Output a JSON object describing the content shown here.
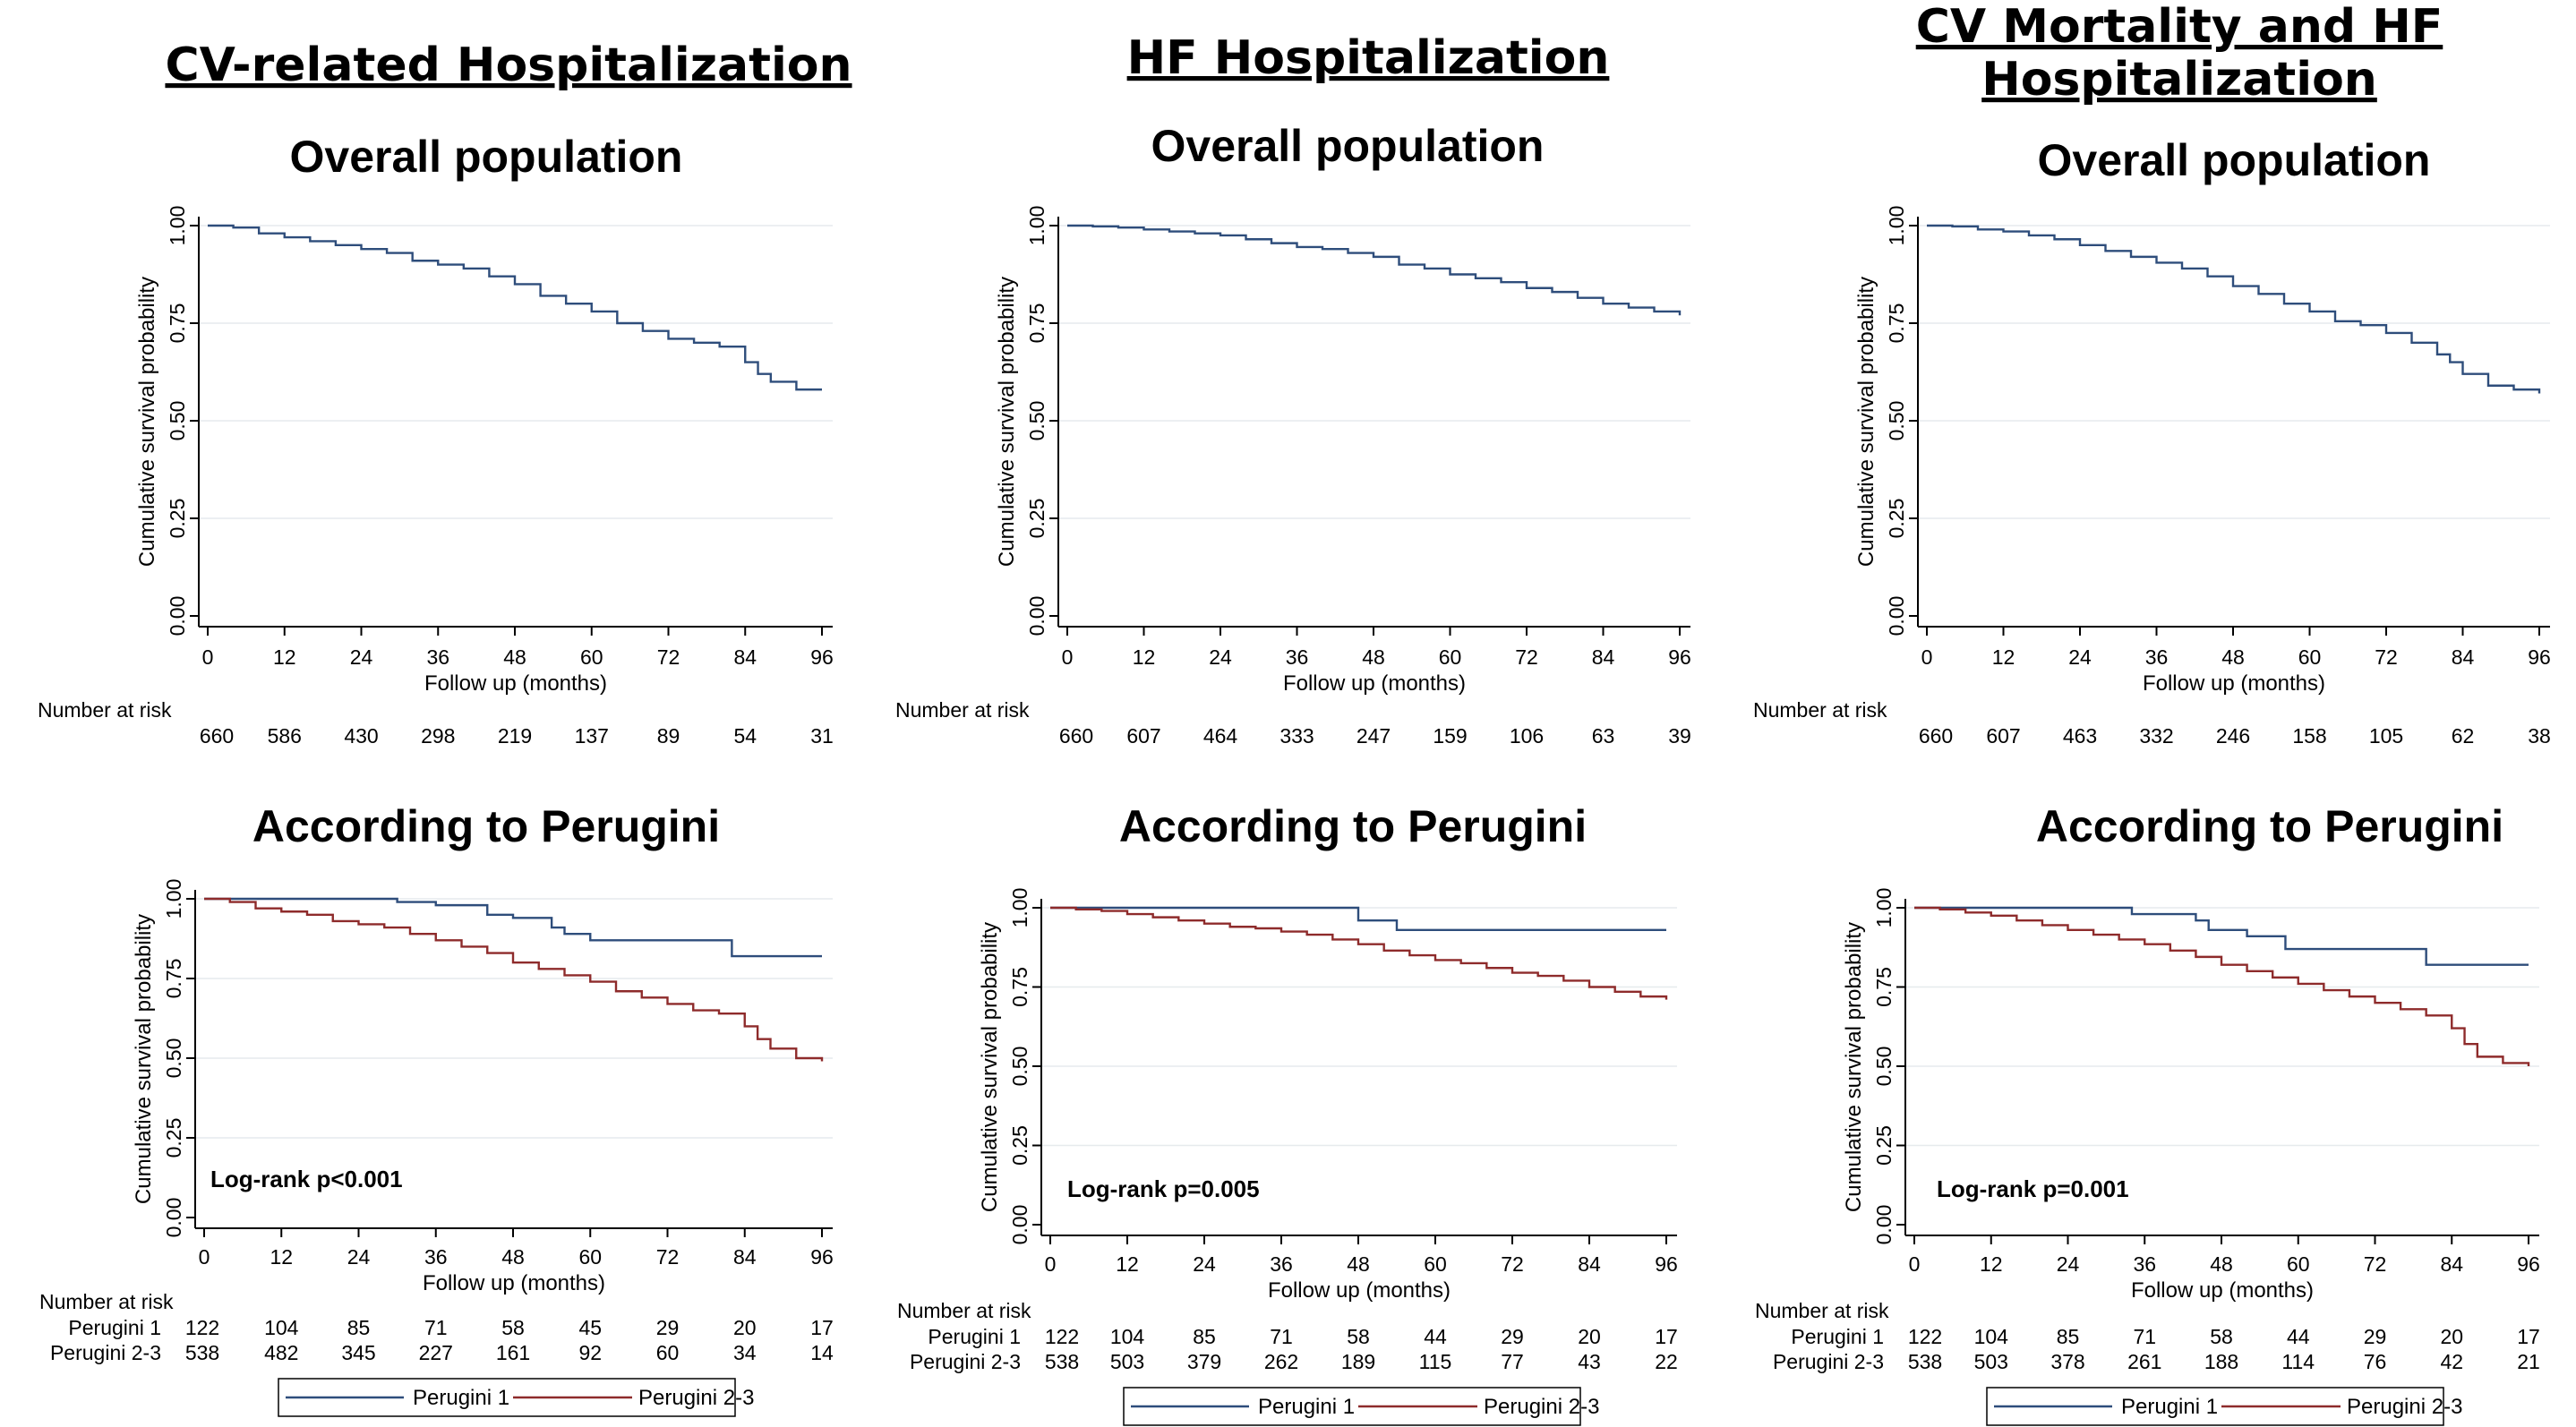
{
  "colors": {
    "series1": "#2e4d7b",
    "series2": "#8e2b2b",
    "grid": "#e6eaed",
    "axis": "#000000"
  },
  "x_ticks": [
    "0",
    "12",
    "24",
    "36",
    "48",
    "60",
    "72",
    "84",
    "96"
  ],
  "y_ticks": [
    "0.00",
    "0.25",
    "0.50",
    "0.75",
    "1.00"
  ],
  "labels": {
    "ylabel": "Cumulative survival probability",
    "xlabel": "Follow up (months)",
    "risk_header": "Number at risk",
    "group1": "Perugini 1",
    "group2": "Perugini 2-3",
    "legend1": "Perugini 1",
    "legend2": "Perugini 2-3"
  },
  "columns": [
    {
      "title_lines": [
        "CV-related Hospitalization"
      ],
      "top": {
        "subtitle": "Overall population",
        "risk": [
          "660",
          "586",
          "430",
          "298",
          "219",
          "137",
          "89",
          "54",
          "31"
        ],
        "chart_data": {
          "type": "line",
          "xlim": [
            0,
            96
          ],
          "ylim": [
            0,
            1
          ],
          "series": [
            {
              "name": "Overall",
              "x": [
                0,
                4,
                8,
                12,
                16,
                20,
                24,
                28,
                32,
                36,
                40,
                44,
                48,
                52,
                56,
                60,
                64,
                68,
                72,
                76,
                80,
                84,
                86,
                88,
                92,
                96
              ],
              "y": [
                1.0,
                0.995,
                0.98,
                0.97,
                0.96,
                0.95,
                0.94,
                0.93,
                0.91,
                0.9,
                0.89,
                0.87,
                0.85,
                0.82,
                0.8,
                0.78,
                0.75,
                0.73,
                0.71,
                0.7,
                0.69,
                0.65,
                0.62,
                0.6,
                0.58,
                0.58
              ]
            }
          ]
        }
      },
      "bottom": {
        "subtitle": "According to Perugini",
        "logrank": "Log-rank p<0.001",
        "risk1": [
          "122",
          "104",
          "85",
          "71",
          "58",
          "45",
          "29",
          "20",
          "17"
        ],
        "risk2": [
          "538",
          "482",
          "345",
          "227",
          "161",
          "92",
          "60",
          "34",
          "14"
        ],
        "chart_data": {
          "type": "line",
          "xlim": [
            0,
            96
          ],
          "ylim": [
            0,
            1
          ],
          "series": [
            {
              "name": "Perugini 1",
              "x": [
                0,
                10,
                30,
                36,
                44,
                48,
                54,
                56,
                60,
                82,
                96
              ],
              "y": [
                1.0,
                1.0,
                0.99,
                0.98,
                0.95,
                0.94,
                0.91,
                0.89,
                0.87,
                0.82,
                0.82
              ]
            },
            {
              "name": "Perugini 2-3",
              "x": [
                0,
                4,
                8,
                12,
                16,
                20,
                24,
                28,
                32,
                36,
                40,
                44,
                48,
                52,
                56,
                60,
                64,
                68,
                72,
                76,
                80,
                84,
                86,
                88,
                92,
                96
              ],
              "y": [
                1.0,
                0.99,
                0.97,
                0.96,
                0.95,
                0.93,
                0.92,
                0.91,
                0.89,
                0.87,
                0.85,
                0.83,
                0.8,
                0.78,
                0.76,
                0.74,
                0.71,
                0.69,
                0.67,
                0.65,
                0.64,
                0.6,
                0.56,
                0.53,
                0.5,
                0.49
              ]
            }
          ]
        }
      }
    },
    {
      "title_lines": [
        "HF Hospitalization"
      ],
      "top": {
        "subtitle": "Overall population",
        "risk": [
          "660",
          "607",
          "464",
          "333",
          "247",
          "159",
          "106",
          "63",
          "39"
        ],
        "chart_data": {
          "type": "line",
          "xlim": [
            0,
            96
          ],
          "ylim": [
            0,
            1
          ],
          "series": [
            {
              "name": "Overall",
              "x": [
                0,
                4,
                8,
                12,
                16,
                20,
                24,
                28,
                32,
                36,
                40,
                44,
                48,
                52,
                56,
                60,
                64,
                68,
                72,
                76,
                80,
                84,
                88,
                92,
                96
              ],
              "y": [
                1.0,
                0.998,
                0.995,
                0.99,
                0.985,
                0.98,
                0.975,
                0.965,
                0.955,
                0.945,
                0.94,
                0.93,
                0.92,
                0.9,
                0.89,
                0.875,
                0.865,
                0.855,
                0.84,
                0.83,
                0.815,
                0.8,
                0.79,
                0.78,
                0.77
              ]
            }
          ]
        }
      },
      "bottom": {
        "subtitle": "According to Perugini",
        "logrank": "Log-rank p=0.005",
        "risk1": [
          "122",
          "104",
          "85",
          "71",
          "58",
          "44",
          "29",
          "20",
          "17"
        ],
        "risk2": [
          "538",
          "503",
          "379",
          "262",
          "189",
          "115",
          "77",
          "43",
          "22"
        ],
        "chart_data": {
          "type": "line",
          "xlim": [
            0,
            96
          ],
          "ylim": [
            0,
            1
          ],
          "series": [
            {
              "name": "Perugini 1",
              "x": [
                0,
                20,
                46,
                48,
                54,
                96
              ],
              "y": [
                1.0,
                1.0,
                1.0,
                0.96,
                0.93,
                0.93
              ]
            },
            {
              "name": "Perugini 2-3",
              "x": [
                0,
                4,
                8,
                12,
                16,
                20,
                24,
                28,
                32,
                36,
                40,
                44,
                48,
                52,
                56,
                60,
                64,
                68,
                72,
                76,
                80,
                84,
                88,
                92,
                96
              ],
              "y": [
                1.0,
                0.995,
                0.99,
                0.98,
                0.97,
                0.96,
                0.95,
                0.94,
                0.935,
                0.925,
                0.915,
                0.9,
                0.885,
                0.865,
                0.85,
                0.835,
                0.825,
                0.81,
                0.795,
                0.785,
                0.77,
                0.75,
                0.735,
                0.72,
                0.71
              ]
            }
          ]
        }
      }
    },
    {
      "title_lines": [
        "CV Mortality and HF",
        "Hospitalization"
      ],
      "top": {
        "subtitle": "Overall population",
        "risk": [
          "660",
          "607",
          "463",
          "332",
          "246",
          "158",
          "105",
          "62",
          "38"
        ],
        "chart_data": {
          "type": "line",
          "xlim": [
            0,
            96
          ],
          "ylim": [
            0,
            1
          ],
          "series": [
            {
              "name": "Overall",
              "x": [
                0,
                4,
                8,
                12,
                16,
                20,
                24,
                28,
                32,
                36,
                40,
                44,
                48,
                52,
                56,
                60,
                64,
                68,
                72,
                76,
                80,
                82,
                84,
                88,
                92,
                96
              ],
              "y": [
                1.0,
                0.998,
                0.99,
                0.985,
                0.975,
                0.965,
                0.95,
                0.935,
                0.92,
                0.905,
                0.89,
                0.87,
                0.845,
                0.825,
                0.8,
                0.78,
                0.755,
                0.745,
                0.725,
                0.7,
                0.67,
                0.65,
                0.62,
                0.59,
                0.58,
                0.57
              ]
            }
          ]
        }
      },
      "bottom": {
        "subtitle": "According to Perugini",
        "logrank": "Log-rank p=0.001",
        "risk1": [
          "122",
          "104",
          "85",
          "71",
          "58",
          "44",
          "29",
          "20",
          "17"
        ],
        "risk2": [
          "538",
          "503",
          "378",
          "261",
          "188",
          "114",
          "76",
          "42",
          "21"
        ],
        "chart_data": {
          "type": "line",
          "xlim": [
            0,
            96
          ],
          "ylim": [
            0,
            1
          ],
          "series": [
            {
              "name": "Perugini 1",
              "x": [
                0,
                20,
                34,
                44,
                46,
                52,
                58,
                80,
                96
              ],
              "y": [
                1.0,
                1.0,
                0.98,
                0.96,
                0.93,
                0.91,
                0.87,
                0.82,
                0.82
              ]
            },
            {
              "name": "Perugini 2-3",
              "x": [
                0,
                4,
                8,
                12,
                16,
                20,
                24,
                28,
                32,
                36,
                40,
                44,
                48,
                52,
                56,
                60,
                64,
                68,
                72,
                76,
                80,
                84,
                86,
                88,
                92,
                96
              ],
              "y": [
                1.0,
                0.995,
                0.985,
                0.975,
                0.96,
                0.945,
                0.93,
                0.915,
                0.9,
                0.885,
                0.865,
                0.845,
                0.82,
                0.8,
                0.78,
                0.76,
                0.74,
                0.72,
                0.7,
                0.68,
                0.66,
                0.62,
                0.57,
                0.53,
                0.51,
                0.5
              ]
            }
          ]
        }
      }
    }
  ]
}
